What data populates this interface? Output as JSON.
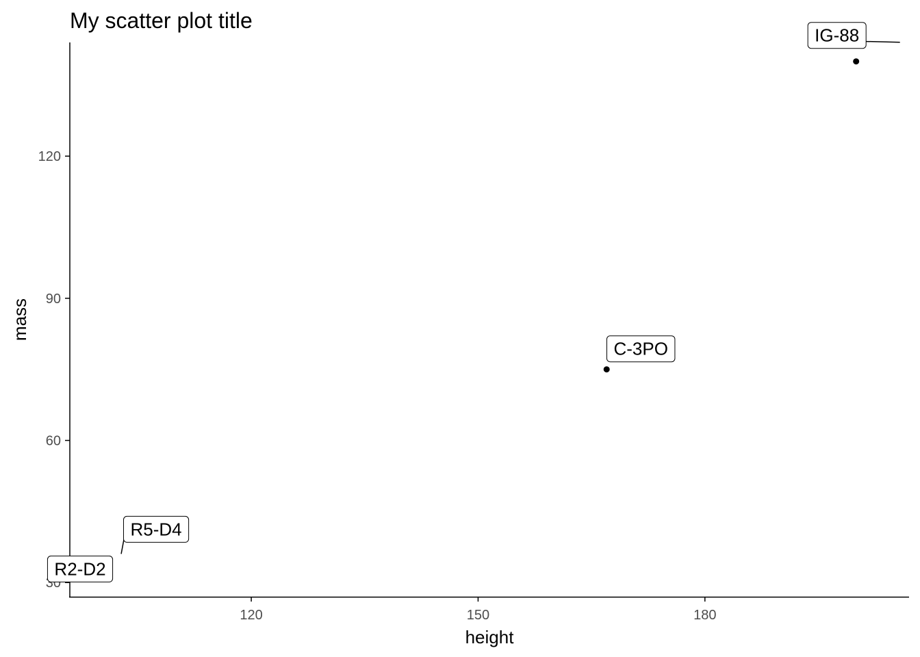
{
  "chart_data": {
    "type": "scatter",
    "title": "My scatter plot title",
    "xlabel": "height",
    "ylabel": "mass",
    "xlim": [
      96,
      207
    ],
    "ylim": [
      27,
      144
    ],
    "xticks": [
      120,
      150,
      180
    ],
    "yticks": [
      30,
      60,
      90,
      120
    ],
    "grid": false,
    "points": [
      {
        "label": "R2-D2",
        "x": 96,
        "y": 32
      },
      {
        "label": "R5-D4",
        "x": 97,
        "y": 32
      },
      {
        "label": "C-3PO",
        "x": 167,
        "y": 75
      },
      {
        "label": "IG-88",
        "x": 200,
        "y": 140
      }
    ],
    "colors": {
      "point": "#000000",
      "axis": "#000000",
      "tick_label": "#4d4d4d",
      "label_box_fill": "#ffffff",
      "label_box_border": "#000000"
    }
  }
}
